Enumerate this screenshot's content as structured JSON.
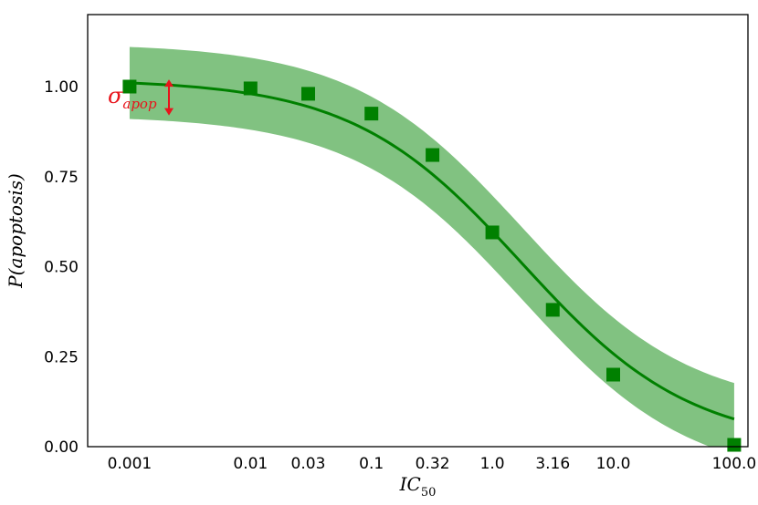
{
  "chart_data": {
    "type": "line",
    "xlabel": "IC",
    "xlabel_subscript": "50",
    "ylabel": "P(apoptosis)",
    "x_scale": "log",
    "xlim": [
      0.00045,
      130
    ],
    "ylim": [
      0,
      1.2
    ],
    "x_ticks": [
      {
        "value": 0.001,
        "label": "0.001"
      },
      {
        "value": 0.01,
        "label": "0.01"
      },
      {
        "value": 0.03,
        "label": "0.03"
      },
      {
        "value": 0.1,
        "label": "0.1"
      },
      {
        "value": 0.32,
        "label": "0.32"
      },
      {
        "value": 1.0,
        "label": "1.0"
      },
      {
        "value": 3.16,
        "label": "3.16"
      },
      {
        "value": 10.0,
        "label": "10.0"
      },
      {
        "value": 100.0,
        "label": "100.0"
      }
    ],
    "y_ticks": [
      {
        "value": 0.0,
        "label": "0.00"
      },
      {
        "value": 0.25,
        "label": "0.25"
      },
      {
        "value": 0.5,
        "label": "0.50"
      },
      {
        "value": 0.75,
        "label": "0.75"
      },
      {
        "value": 1.0,
        "label": "1.00"
      }
    ],
    "grid": false,
    "series": [
      {
        "color": "#008000",
        "marker": "square",
        "x": [
          0.001,
          0.01,
          0.03,
          0.1,
          0.32,
          1.0,
          3.16,
          10.0,
          100.0
        ],
        "y": [
          1.0,
          0.995,
          0.98,
          0.925,
          0.81,
          0.595,
          0.38,
          0.2,
          0.005
        ]
      }
    ],
    "band": {
      "color": "#81c281",
      "half_width": 0.1,
      "curve": {
        "top": 1.02,
        "ic50": 1.75,
        "hill": 0.62
      }
    },
    "annotation": {
      "symbol": "σ",
      "subscript": "apop",
      "color": "#e8141c",
      "x": 0.00055,
      "arrow_from": 0.92,
      "arrow_to": 1.02
    }
  }
}
